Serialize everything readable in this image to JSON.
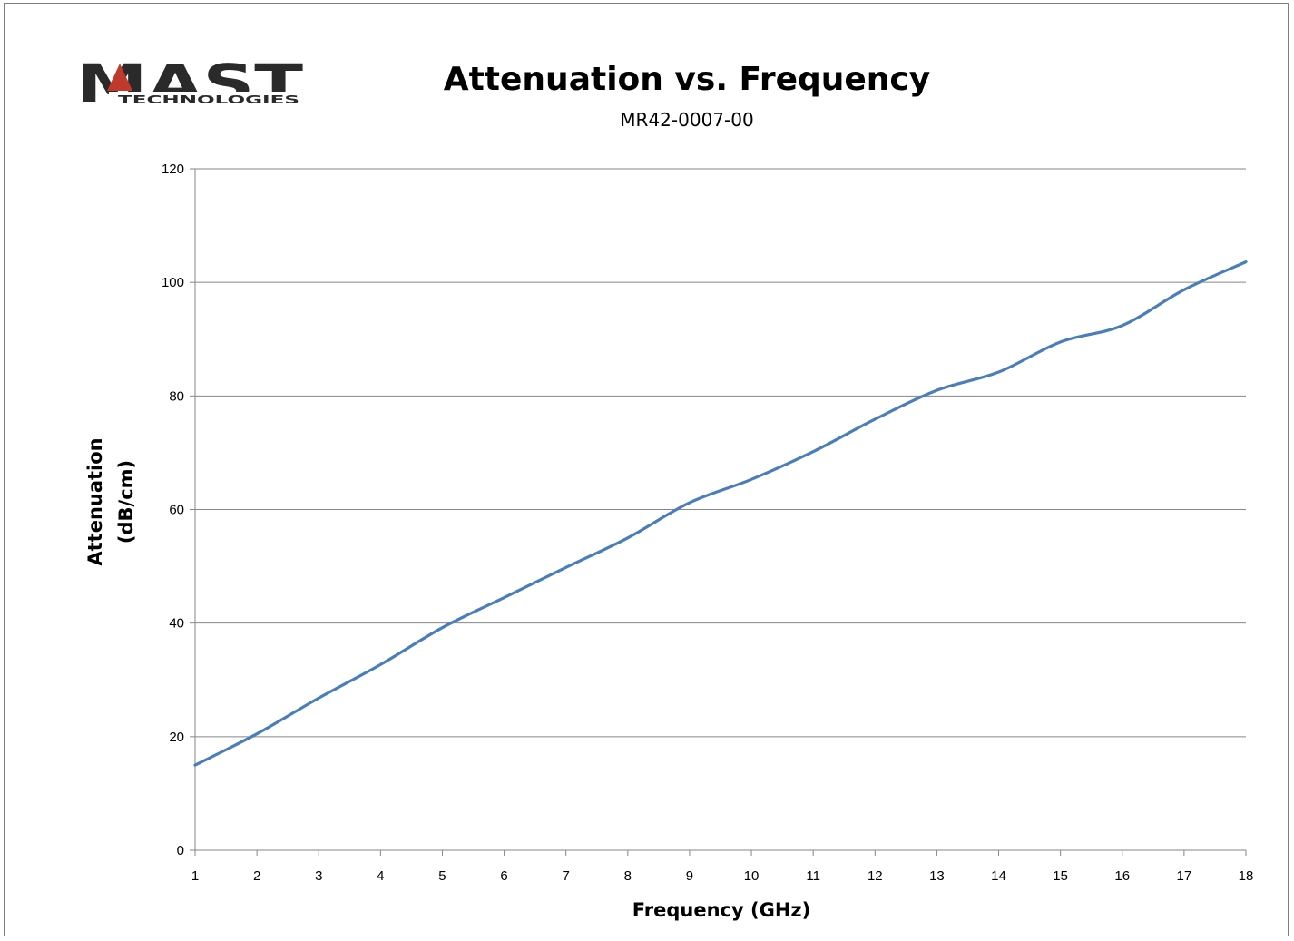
{
  "logo": {
    "main": "MAST",
    "sub": "TECHNOLOGIES"
  },
  "chart_data": {
    "type": "line",
    "title": "Attenuation vs. Frequency",
    "subtitle": "MR42-0007-00",
    "xlabel": "Frequency (GHz)",
    "ylabel_lines": [
      "Attenuation",
      "(dB/cm)"
    ],
    "xlim": [
      1,
      18
    ],
    "ylim": [
      0,
      120
    ],
    "x_ticks": [
      1,
      2,
      3,
      4,
      5,
      6,
      7,
      8,
      9,
      10,
      11,
      12,
      13,
      14,
      15,
      16,
      17,
      18
    ],
    "y_ticks": [
      0,
      20,
      40,
      60,
      80,
      100,
      120
    ],
    "grid": "horizontal",
    "line_color": "#4a7ebb",
    "series": [
      {
        "x": [
          1,
          2,
          3,
          4,
          5,
          6,
          7,
          8,
          9,
          10,
          11,
          12,
          13,
          14,
          15,
          16,
          17,
          18
        ],
        "values": [
          15,
          20.5,
          26.8,
          32.7,
          39.2,
          44.5,
          49.8,
          55,
          61.2,
          65.3,
          70.2,
          75.9,
          81,
          84.2,
          89.5,
          92.4,
          98.7,
          103.6
        ]
      }
    ]
  }
}
